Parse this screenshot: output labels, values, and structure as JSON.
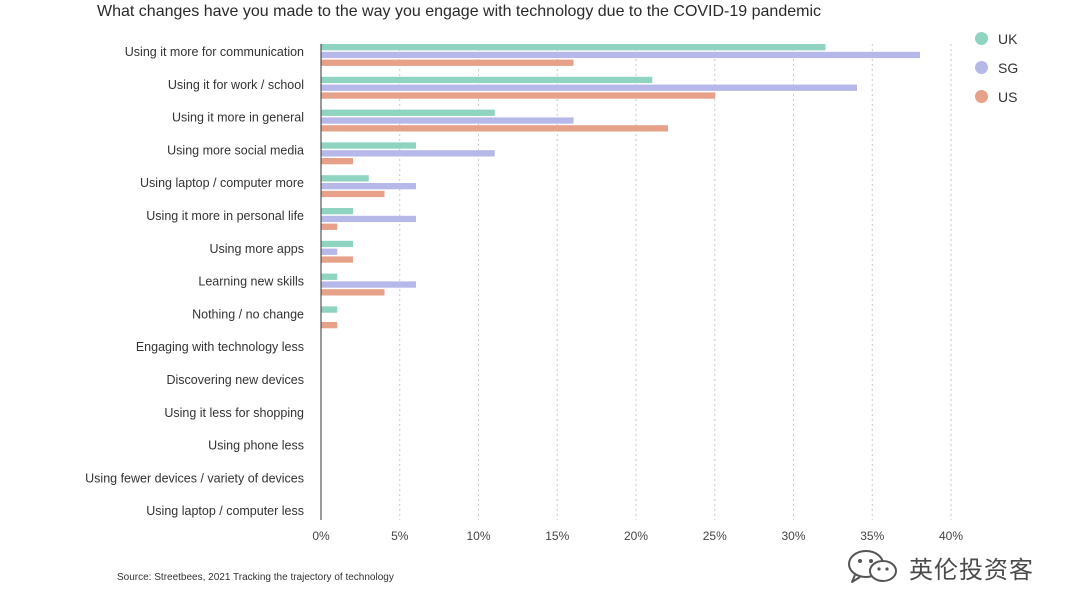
{
  "chart_data": {
    "type": "bar",
    "orientation": "horizontal",
    "title": "What changes have you made to the way you engage with technology due to the COVID-19 pandemic",
    "categories": [
      "Using it more for communication",
      "Using it for work / school",
      "Using it more in general",
      "Using more social media",
      "Using laptop / computer more",
      "Using it more in personal life",
      "Using more apps",
      "Learning new skills",
      "Nothing / no change",
      "Engaging with technology less",
      "Discovering new devices",
      "Using it less for shopping",
      "Using phone less",
      "Using fewer devices / variety of devices",
      "Using laptop / computer less"
    ],
    "series": [
      {
        "name": "UK",
        "color": "#8fd3c1",
        "values": [
          32,
          21,
          11,
          6,
          3,
          2,
          2,
          1,
          1,
          0,
          0,
          0,
          0,
          0,
          0
        ]
      },
      {
        "name": "SG",
        "color": "#b7b8ea",
        "values": [
          38,
          34,
          16,
          11,
          6,
          6,
          1,
          6,
          0,
          0,
          0,
          0,
          0,
          0,
          0
        ]
      },
      {
        "name": "US",
        "color": "#e6a188",
        "values": [
          16,
          25,
          22,
          2,
          4,
          1,
          2,
          4,
          1,
          0,
          0,
          0,
          0,
          0,
          0
        ]
      }
    ],
    "xlim": [
      0,
      40
    ],
    "xticks": [
      "0%",
      "5%",
      "10%",
      "15%",
      "20%",
      "25%",
      "30%",
      "35%",
      "40%"
    ],
    "grid": true,
    "legend_position": "top-right"
  },
  "source": "Source: Streetbees, 2021 Tracking the trajectory of technology",
  "watermark": {
    "text": "英伦投资客",
    "icon": "wechat-icon"
  }
}
